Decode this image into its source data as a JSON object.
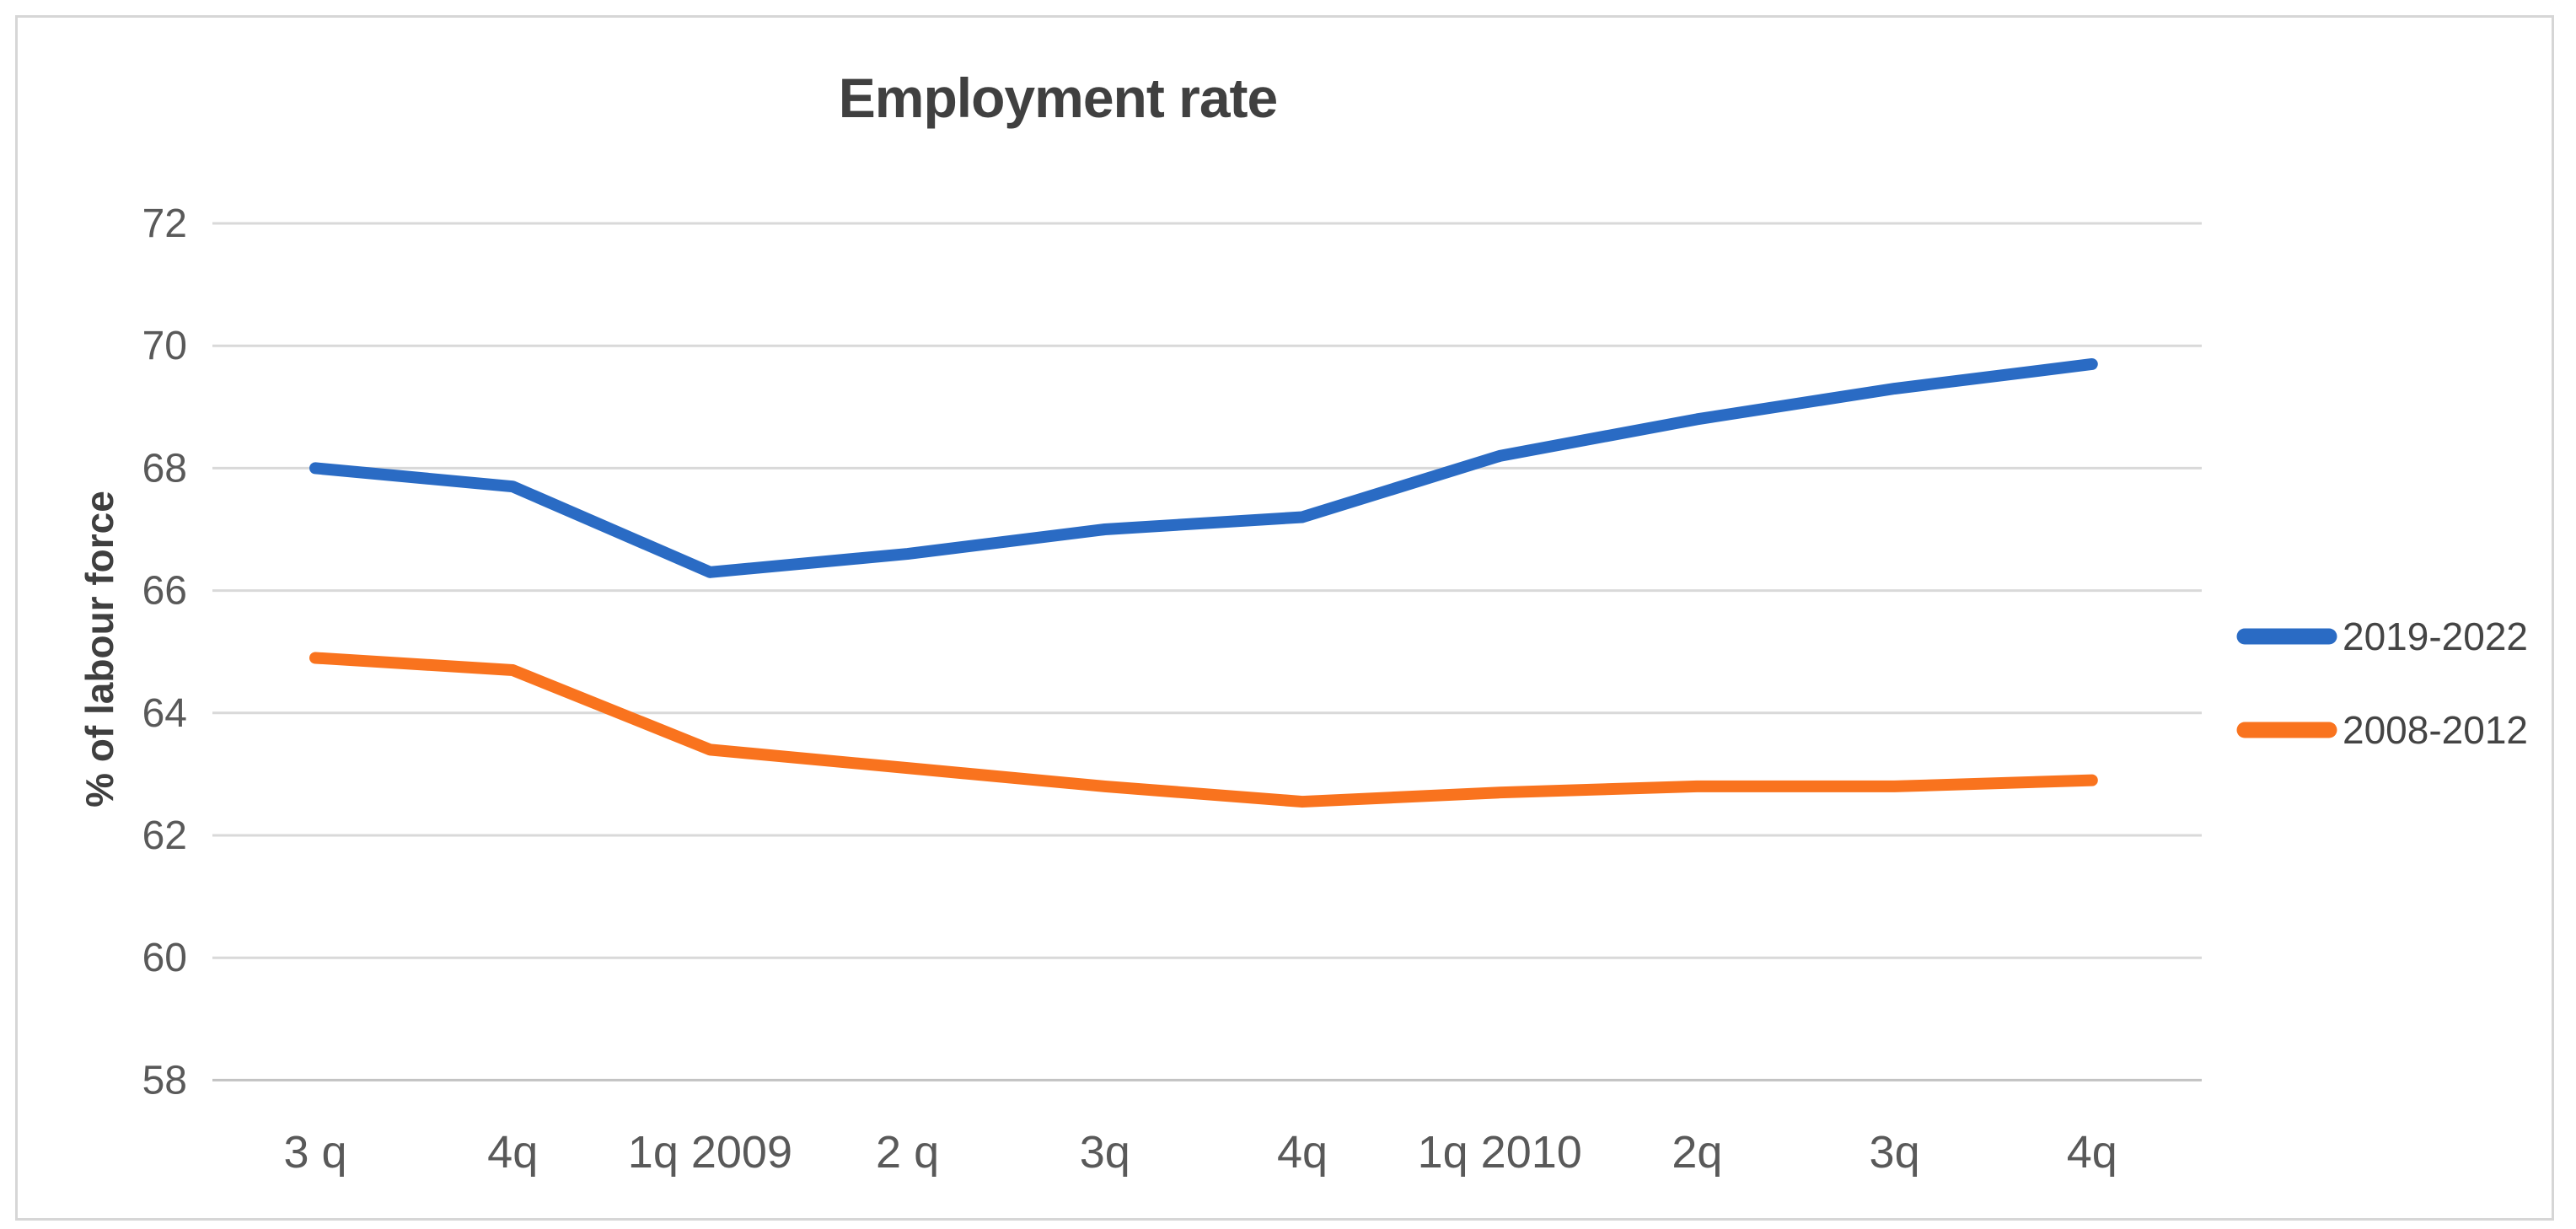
{
  "frame": {
    "border_color": "#d6d6d6"
  },
  "chart_data": {
    "type": "line",
    "title": "Employment rate",
    "xlabel": "",
    "ylabel": "% of labour force",
    "categories": [
      "3 q",
      "4q",
      "1q 2009",
      "2 q",
      "3q",
      "4q",
      "1q 2010",
      "2q",
      "3q",
      "4q"
    ],
    "series": [
      {
        "name": "2019-2022",
        "color": "#2a6bc4",
        "values": [
          68.0,
          67.7,
          66.3,
          66.6,
          67.0,
          67.2,
          68.2,
          68.8,
          69.3,
          69.7
        ]
      },
      {
        "name": "2008-2012",
        "color": "#f9731e",
        "values": [
          64.9,
          64.7,
          63.4,
          63.1,
          62.8,
          62.55,
          62.7,
          62.8,
          62.8,
          62.9
        ]
      }
    ],
    "ylim": [
      58,
      72
    ],
    "yticks": [
      58,
      60,
      62,
      64,
      66,
      68,
      70,
      72
    ],
    "grid": true,
    "gridline_color": "#d9d9d9",
    "axisline_color": "#c3c3c3",
    "tick_label_color": "#595959",
    "legend_position": "right"
  }
}
